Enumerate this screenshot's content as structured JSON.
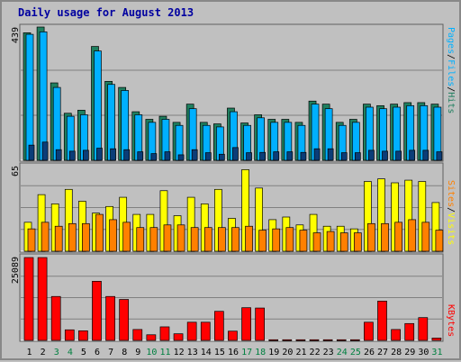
{
  "title": "Daily usage for August 2013",
  "colors": {
    "hits": "#1f7f5f",
    "files": "#00b0ff",
    "pages": "#0b3d78",
    "visits": "#ffff00",
    "sites": "#ff8000",
    "kbytes": "#ff0000",
    "weekend": "#008040",
    "weekday": "#000000",
    "panel_bg": "#c0c0c0",
    "grid": "#808080"
  },
  "chart_data": [
    {
      "type": "bar",
      "name": "hits-files-pages",
      "ymax_label": "439",
      "ylim": [
        0,
        439
      ],
      "legend": [
        "Pages",
        "/",
        "Files",
        "/",
        "Hits"
      ],
      "categories": [
        "1",
        "2",
        "3",
        "4",
        "5",
        "6",
        "7",
        "8",
        "9",
        "10",
        "11",
        "12",
        "13",
        "14",
        "15",
        "16",
        "17",
        "18",
        "19",
        "20",
        "21",
        "22",
        "23",
        "24",
        "25",
        "26",
        "27",
        "28",
        "29",
        "30",
        "31"
      ],
      "series": [
        {
          "name": "Hits",
          "values": [
            420,
            439,
            255,
            155,
            165,
            375,
            260,
            240,
            160,
            135,
            145,
            125,
            185,
            125,
            120,
            172,
            123,
            150,
            135,
            135,
            125,
            195,
            185,
            125,
            135,
            185,
            180,
            185,
            190,
            190,
            185
          ]
        },
        {
          "name": "Files",
          "values": [
            415,
            423,
            240,
            145,
            150,
            360,
            250,
            230,
            150,
            125,
            135,
            115,
            170,
            115,
            110,
            160,
            115,
            140,
            125,
            125,
            115,
            185,
            170,
            115,
            125,
            175,
            170,
            175,
            180,
            180,
            175
          ]
        },
        {
          "name": "Pages",
          "values": [
            50,
            60,
            35,
            30,
            33,
            40,
            38,
            35,
            28,
            22,
            28,
            18,
            35,
            25,
            20,
            42,
            25,
            26,
            28,
            28,
            26,
            38,
            38,
            25,
            25,
            33,
            30,
            30,
            33,
            33,
            28
          ]
        }
      ]
    },
    {
      "type": "bar",
      "name": "visits-sites",
      "ymax_label": "65",
      "ylim": [
        0,
        65
      ],
      "legend": [
        "Sites",
        "/",
        "Visits"
      ],
      "categories": [
        "1",
        "2",
        "3",
        "4",
        "5",
        "6",
        "7",
        "8",
        "9",
        "10",
        "11",
        "12",
        "13",
        "14",
        "15",
        "16",
        "17",
        "18",
        "19",
        "20",
        "21",
        "22",
        "23",
        "24",
        "25",
        "26",
        "27",
        "28",
        "29",
        "30",
        "31"
      ],
      "series": [
        {
          "name": "Visits",
          "values": [
            22,
            43,
            36,
            47,
            38,
            29,
            34,
            41,
            28,
            28,
            46,
            27,
            41,
            36,
            47,
            25,
            62,
            48,
            24,
            26,
            20,
            28,
            19,
            19,
            17,
            53,
            55,
            52,
            54,
            53,
            37
          ]
        },
        {
          "name": "Sites",
          "values": [
            17,
            22,
            19,
            21,
            21,
            28,
            24,
            22,
            18,
            18,
            20,
            20,
            18,
            18,
            18,
            18,
            19,
            16,
            17,
            18,
            16,
            14,
            15,
            14,
            14,
            21,
            21,
            22,
            24,
            22,
            16
          ]
        }
      ]
    },
    {
      "type": "bar",
      "name": "kbytes",
      "ymax_label": "25089",
      "ylim": [
        0,
        25089
      ],
      "legend": [
        "KBytes"
      ],
      "categories": [
        "1",
        "2",
        "3",
        "4",
        "5",
        "6",
        "7",
        "8",
        "9",
        "10",
        "11",
        "12",
        "13",
        "14",
        "15",
        "16",
        "17",
        "18",
        "19",
        "20",
        "21",
        "22",
        "23",
        "24",
        "25",
        "26",
        "27",
        "28",
        "29",
        "30",
        "31"
      ],
      "series": [
        {
          "name": "KBytes",
          "values": [
            25089,
            25089,
            13300,
            3200,
            2900,
            17900,
            13300,
            12400,
            3300,
            1700,
            4100,
            2000,
            5500,
            5500,
            8800,
            2800,
            9900,
            9800,
            200,
            200,
            200,
            200,
            200,
            200,
            200,
            5500,
            11900,
            3300,
            5100,
            6900,
            700
          ]
        }
      ]
    }
  ],
  "x_labels": [
    "1",
    "2",
    "3",
    "4",
    "5",
    "6",
    "7",
    "8",
    "9",
    "10",
    "11",
    "12",
    "13",
    "14",
    "15",
    "16",
    "17",
    "18",
    "19",
    "20",
    "21",
    "22",
    "23",
    "24",
    "25",
    "26",
    "27",
    "28",
    "29",
    "30",
    "31"
  ],
  "weekend_days": [
    "3",
    "4",
    "10",
    "11",
    "17",
    "18",
    "24",
    "25",
    "31"
  ]
}
